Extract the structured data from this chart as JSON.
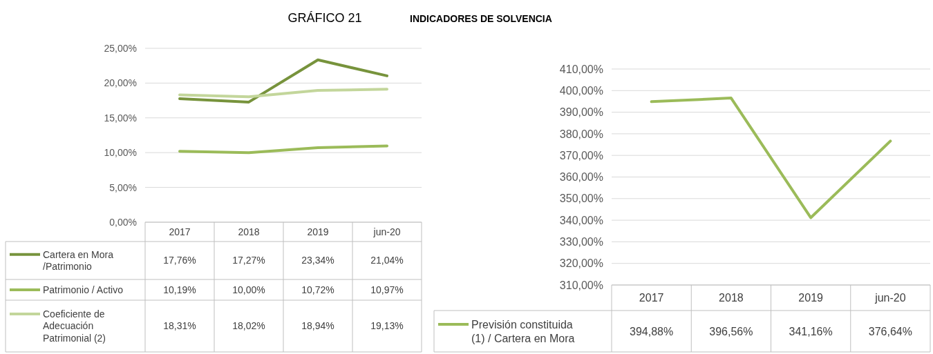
{
  "chart_data": [
    {
      "type": "line",
      "title": "GRÁFICO 21",
      "subtitle": "INDICADORES DE SOLVENCIA",
      "categories": [
        "2017",
        "2018",
        "2019",
        "jun-20"
      ],
      "series": [
        {
          "name": "Cartera en Mora /Patrimonio",
          "color": "#77933c",
          "values": [
            17.76,
            17.27,
            23.34,
            21.04
          ],
          "value_labels": [
            "17,76%",
            "17,27%",
            "23,34%",
            "21,04%"
          ]
        },
        {
          "name": "Patrimonio / Activo",
          "color": "#9bbb59",
          "values": [
            10.19,
            10.0,
            10.72,
            10.97
          ],
          "value_labels": [
            "10,19%",
            "10,00%",
            "10,72%",
            "10,97%"
          ]
        },
        {
          "name": "Coeficiente de Adecuación Patrimonial (2)",
          "color": "#c3d69b",
          "values": [
            18.31,
            18.02,
            18.94,
            19.13
          ],
          "value_labels": [
            "18,31%",
            "18,02%",
            "18,94%",
            "19,13%"
          ]
        }
      ],
      "ylim": [
        0,
        25
      ],
      "yticks": [
        {
          "value": 0,
          "label": "0,00%"
        },
        {
          "value": 5,
          "label": "5,00%"
        },
        {
          "value": 10,
          "label": "10,00%"
        },
        {
          "value": 15,
          "label": "15,00%"
        },
        {
          "value": 20,
          "label": "20,00%"
        },
        {
          "value": 25,
          "label": "25,00%"
        }
      ],
      "grid": "y",
      "legend": "bottom",
      "marker": "none"
    },
    {
      "type": "line",
      "categories": [
        "2017",
        "2018",
        "2019",
        "jun-20"
      ],
      "series": [
        {
          "name": "Previsión constituida (1) / Cartera en Mora",
          "color": "#9bbb59",
          "values": [
            394.88,
            396.56,
            341.16,
            376.64
          ],
          "value_labels": [
            "394,88%",
            "396,56%",
            "341,16%",
            "376,64%"
          ]
        }
      ],
      "ylim": [
        310,
        410
      ],
      "yticks": [
        {
          "value": 310,
          "label": "310,00%"
        },
        {
          "value": 320,
          "label": "320,00%"
        },
        {
          "value": 330,
          "label": "330,00%"
        },
        {
          "value": 340,
          "label": "340,00%"
        },
        {
          "value": 350,
          "label": "350,00%"
        },
        {
          "value": 360,
          "label": "360,00%"
        },
        {
          "value": 370,
          "label": "370,00%"
        },
        {
          "value": 380,
          "label": "380,00%"
        },
        {
          "value": 390,
          "label": "390,00%"
        },
        {
          "value": 400,
          "label": "400,00%"
        },
        {
          "value": 410,
          "label": "410,00%"
        }
      ],
      "grid": "y",
      "legend": "bottom",
      "marker": "none"
    }
  ]
}
